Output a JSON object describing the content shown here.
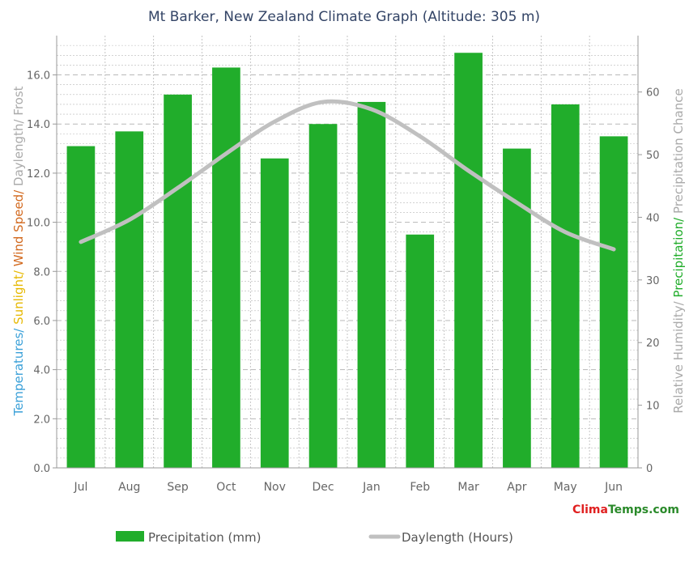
{
  "chart_data": {
    "type": "bar",
    "title": "Mt Barker, New Zealand Climate Graph (Altitude: 305 m)",
    "categories": [
      "Jul",
      "Aug",
      "Sep",
      "Oct",
      "Nov",
      "Dec",
      "Jan",
      "Feb",
      "Mar",
      "Apr",
      "May",
      "Jun"
    ],
    "series": [
      {
        "name": "Precipitation (mm)",
        "type": "bar",
        "axis": "left",
        "color": "#21ad2b",
        "values": [
          13.1,
          13.7,
          15.2,
          16.3,
          12.6,
          14.0,
          14.9,
          9.5,
          16.9,
          13.0,
          14.8,
          13.5
        ]
      },
      {
        "name": "Daylength (Hours)",
        "type": "line",
        "axis": "left",
        "color": "#c0c0c0",
        "values": [
          9.2,
          10.1,
          11.4,
          12.8,
          14.1,
          14.9,
          14.6,
          13.5,
          12.1,
          10.8,
          9.6,
          8.9
        ]
      }
    ],
    "left_axis": {
      "label_parts": [
        {
          "text": "Temperatures/ ",
          "color": "#3aa0d8"
        },
        {
          "text": "Sunlight/ ",
          "color": "#e6b800"
        },
        {
          "text": "Wind Speed/ ",
          "color": "#d2691e"
        },
        {
          "text": "Daylength/ Frost",
          "color": "#aaaaaa"
        }
      ],
      "ylim": [
        0,
        17.6
      ],
      "ticks": [
        "0.0",
        "2.0",
        "4.0",
        "6.0",
        "8.0",
        "10.0",
        "12.0",
        "14.0",
        "16.0"
      ]
    },
    "right_axis": {
      "label_parts": [
        {
          "text": "Relative Humidity/ ",
          "color": "#aaaaaa"
        },
        {
          "text": "Precipitation/ ",
          "color": "#21ad2b"
        },
        {
          "text": "Precipitation Chance",
          "color": "#aaaaaa"
        }
      ],
      "ylim": [
        0,
        69
      ],
      "ticks": [
        "0",
        "10",
        "20",
        "30",
        "40",
        "50",
        "60"
      ]
    },
    "grid": true,
    "legend_position": "bottom"
  },
  "branding": {
    "clima": "Clima",
    "temps": "Temps",
    "dotcom": ".com",
    "clima_color": "#e02020",
    "temps_color": "#2a8a2a"
  },
  "colors": {
    "title": "#334466",
    "tick_text": "#666666",
    "grid": "#b8b8b8"
  }
}
